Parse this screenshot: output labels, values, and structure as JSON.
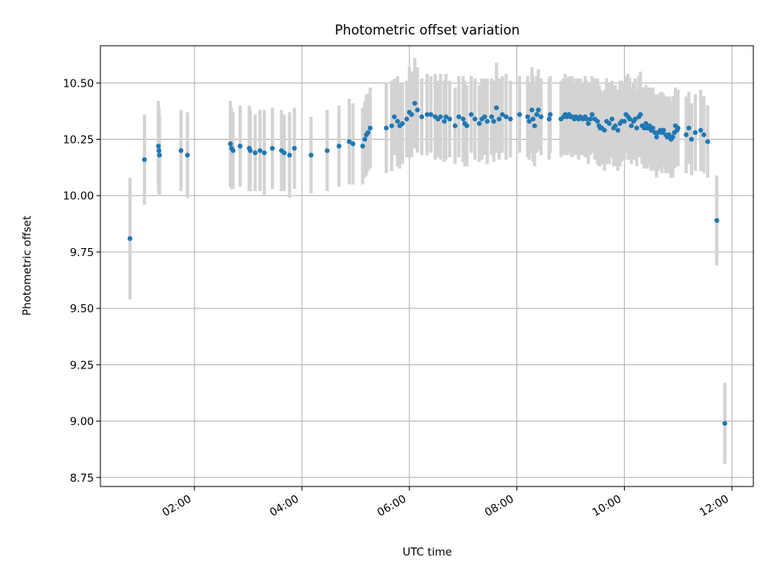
{
  "chart_data": {
    "type": "scatter",
    "title": "Photometric offset variation",
    "xlabel": "UTC time",
    "ylabel": "Photometric offset",
    "xlim": [
      0.25,
      12.4
    ],
    "ylim": [
      8.71,
      10.665
    ],
    "grid": true,
    "x_ticks": [
      {
        "value": 2,
        "label": "02:00"
      },
      {
        "value": 4,
        "label": "04:00"
      },
      {
        "value": 6,
        "label": "06:00"
      },
      {
        "value": 8,
        "label": "08:00"
      },
      {
        "value": 10,
        "label": "10:00"
      },
      {
        "value": 12,
        "label": "12:00"
      }
    ],
    "y_ticks": [
      {
        "value": 8.75,
        "label": "8.75"
      },
      {
        "value": 9.0,
        "label": "9.00"
      },
      {
        "value": 9.25,
        "label": "9.25"
      },
      {
        "value": 9.5,
        "label": "9.50"
      },
      {
        "value": 9.75,
        "label": "9.75"
      },
      {
        "value": 10.0,
        "label": "10.00"
      },
      {
        "value": 10.25,
        "label": "10.25"
      },
      {
        "value": 10.5,
        "label": "10.50"
      }
    ],
    "colors": {
      "marker": "#1f77b4",
      "errorbar": "#d3d3d3"
    },
    "series": [
      {
        "name": "photometric offset",
        "points": [
          [
            0.8,
            9.81,
            0.27
          ],
          [
            1.07,
            10.16,
            0.2
          ],
          [
            1.33,
            10.22,
            0.2
          ],
          [
            1.34,
            10.2,
            0.19
          ],
          [
            1.35,
            10.18,
            0.18
          ],
          [
            1.75,
            10.2,
            0.18
          ],
          [
            1.87,
            10.18,
            0.19
          ],
          [
            2.67,
            10.23,
            0.19
          ],
          [
            2.69,
            10.21,
            0.18
          ],
          [
            2.72,
            10.2,
            0.17
          ],
          [
            2.85,
            10.22,
            0.18
          ],
          [
            3.02,
            10.21,
            0.19
          ],
          [
            3.04,
            10.2,
            0.18
          ],
          [
            3.13,
            10.19,
            0.17
          ],
          [
            3.22,
            10.2,
            0.18
          ],
          [
            3.3,
            10.19,
            0.19
          ],
          [
            3.45,
            10.21,
            0.18
          ],
          [
            3.62,
            10.2,
            0.18
          ],
          [
            3.67,
            10.19,
            0.17
          ],
          [
            3.77,
            10.18,
            0.19
          ],
          [
            3.86,
            10.21,
            0.18
          ],
          [
            4.17,
            10.18,
            0.17
          ],
          [
            4.47,
            10.2,
            0.18
          ],
          [
            4.69,
            10.22,
            0.18
          ],
          [
            4.88,
            10.24,
            0.19
          ],
          [
            4.95,
            10.23,
            0.18
          ],
          [
            5.13,
            10.22,
            0.17
          ],
          [
            5.17,
            10.25,
            0.17
          ],
          [
            5.2,
            10.27,
            0.18
          ],
          [
            5.23,
            10.28,
            0.17
          ],
          [
            5.27,
            10.3,
            0.18
          ],
          [
            5.57,
            10.3,
            0.2
          ],
          [
            5.67,
            10.31,
            0.2
          ],
          [
            5.72,
            10.35,
            0.17
          ],
          [
            5.78,
            10.33,
            0.2
          ],
          [
            5.82,
            10.31,
            0.19
          ],
          [
            5.87,
            10.32,
            0.18
          ],
          [
            5.95,
            10.34,
            0.17
          ],
          [
            6.0,
            10.37,
            0.2
          ],
          [
            6.04,
            10.36,
            0.19
          ],
          [
            6.1,
            10.41,
            0.2
          ],
          [
            6.15,
            10.38,
            0.19
          ],
          [
            6.23,
            10.35,
            0.17
          ],
          [
            6.33,
            10.36,
            0.18
          ],
          [
            6.4,
            10.36,
            0.17
          ],
          [
            6.48,
            10.35,
            0.19
          ],
          [
            6.53,
            10.34,
            0.17
          ],
          [
            6.58,
            10.35,
            0.19
          ],
          [
            6.65,
            10.33,
            0.18
          ],
          [
            6.68,
            10.35,
            0.19
          ],
          [
            6.75,
            10.34,
            0.17
          ],
          [
            6.85,
            10.31,
            0.17
          ],
          [
            6.92,
            10.35,
            0.18
          ],
          [
            7.0,
            10.34,
            0.19
          ],
          [
            7.03,
            10.32,
            0.19
          ],
          [
            7.07,
            10.31,
            0.18
          ],
          [
            7.15,
            10.36,
            0.17
          ],
          [
            7.22,
            10.34,
            0.18
          ],
          [
            7.3,
            10.32,
            0.17
          ],
          [
            7.35,
            10.34,
            0.18
          ],
          [
            7.4,
            10.35,
            0.17
          ],
          [
            7.45,
            10.33,
            0.19
          ],
          [
            7.53,
            10.35,
            0.17
          ],
          [
            7.57,
            10.33,
            0.18
          ],
          [
            7.62,
            10.39,
            0.2
          ],
          [
            7.67,
            10.34,
            0.18
          ],
          [
            7.73,
            10.36,
            0.17
          ],
          [
            7.8,
            10.35,
            0.19
          ],
          [
            7.88,
            10.34,
            0.17
          ],
          [
            8.05,
            10.36,
            0.17
          ],
          [
            8.2,
            10.35,
            0.18
          ],
          [
            8.23,
            10.33,
            0.17
          ],
          [
            8.28,
            10.38,
            0.19
          ],
          [
            8.3,
            10.34,
            0.19
          ],
          [
            8.33,
            10.31,
            0.18
          ],
          [
            8.37,
            10.36,
            0.17
          ],
          [
            8.4,
            10.38,
            0.18
          ],
          [
            8.45,
            10.35,
            0.17
          ],
          [
            8.6,
            10.34,
            0.18
          ],
          [
            8.62,
            10.36,
            0.17
          ],
          [
            8.82,
            10.34,
            0.17
          ],
          [
            8.87,
            10.35,
            0.17
          ],
          [
            8.9,
            10.36,
            0.18
          ],
          [
            8.93,
            10.35,
            0.17
          ],
          [
            8.97,
            10.36,
            0.17
          ],
          [
            9.0,
            10.35,
            0.17
          ],
          [
            9.03,
            10.35,
            0.18
          ],
          [
            9.07,
            10.34,
            0.16
          ],
          [
            9.1,
            10.35,
            0.17
          ],
          [
            9.15,
            10.34,
            0.18
          ],
          [
            9.18,
            10.35,
            0.17
          ],
          [
            9.23,
            10.34,
            0.16
          ],
          [
            9.27,
            10.35,
            0.18
          ],
          [
            9.3,
            10.34,
            0.17
          ],
          [
            9.33,
            10.32,
            0.18
          ],
          [
            9.37,
            10.34,
            0.16
          ],
          [
            9.4,
            10.36,
            0.17
          ],
          [
            9.45,
            10.34,
            0.18
          ],
          [
            9.5,
            10.33,
            0.19
          ],
          [
            9.53,
            10.31,
            0.18
          ],
          [
            9.55,
            10.3,
            0.17
          ],
          [
            9.58,
            10.3,
            0.16
          ],
          [
            9.63,
            10.29,
            0.18
          ],
          [
            9.67,
            10.33,
            0.19
          ],
          [
            9.72,
            10.32,
            0.18
          ],
          [
            9.77,
            10.34,
            0.17
          ],
          [
            9.8,
            10.3,
            0.17
          ],
          [
            9.83,
            10.31,
            0.18
          ],
          [
            9.88,
            10.29,
            0.18
          ],
          [
            9.92,
            10.32,
            0.19
          ],
          [
            9.95,
            10.33,
            0.18
          ],
          [
            10.0,
            10.33,
            0.17
          ],
          [
            10.03,
            10.36,
            0.17
          ],
          [
            10.07,
            10.35,
            0.19
          ],
          [
            10.1,
            10.34,
            0.18
          ],
          [
            10.13,
            10.31,
            0.17
          ],
          [
            10.17,
            10.33,
            0.17
          ],
          [
            10.2,
            10.34,
            0.18
          ],
          [
            10.23,
            10.3,
            0.17
          ],
          [
            10.27,
            10.35,
            0.18
          ],
          [
            10.3,
            10.36,
            0.19
          ],
          [
            10.33,
            10.31,
            0.17
          ],
          [
            10.37,
            10.3,
            0.18
          ],
          [
            10.4,
            10.32,
            0.17
          ],
          [
            10.43,
            10.3,
            0.18
          ],
          [
            10.47,
            10.31,
            0.17
          ],
          [
            10.5,
            10.29,
            0.18
          ],
          [
            10.53,
            10.3,
            0.18
          ],
          [
            10.57,
            10.28,
            0.17
          ],
          [
            10.6,
            10.26,
            0.18
          ],
          [
            10.63,
            10.28,
            0.17
          ],
          [
            10.67,
            10.29,
            0.17
          ],
          [
            10.7,
            10.28,
            0.18
          ],
          [
            10.73,
            10.29,
            0.16
          ],
          [
            10.77,
            10.27,
            0.17
          ],
          [
            10.8,
            10.26,
            0.16
          ],
          [
            10.83,
            10.27,
            0.17
          ],
          [
            10.87,
            10.25,
            0.17
          ],
          [
            10.9,
            10.26,
            0.18
          ],
          [
            10.93,
            10.28,
            0.16
          ],
          [
            10.95,
            10.31,
            0.17
          ],
          [
            10.98,
            10.29,
            0.16
          ],
          [
            11.0,
            10.3,
            0.17
          ],
          [
            11.15,
            10.27,
            0.17
          ],
          [
            11.2,
            10.3,
            0.16
          ],
          [
            11.25,
            10.25,
            0.16
          ],
          [
            11.32,
            10.28,
            0.17
          ],
          [
            11.42,
            10.29,
            0.18
          ],
          [
            11.48,
            10.27,
            0.17
          ],
          [
            11.55,
            10.24,
            0.16
          ],
          [
            11.72,
            9.89,
            0.2
          ],
          [
            11.87,
            8.99,
            0.18
          ]
        ]
      }
    ]
  }
}
